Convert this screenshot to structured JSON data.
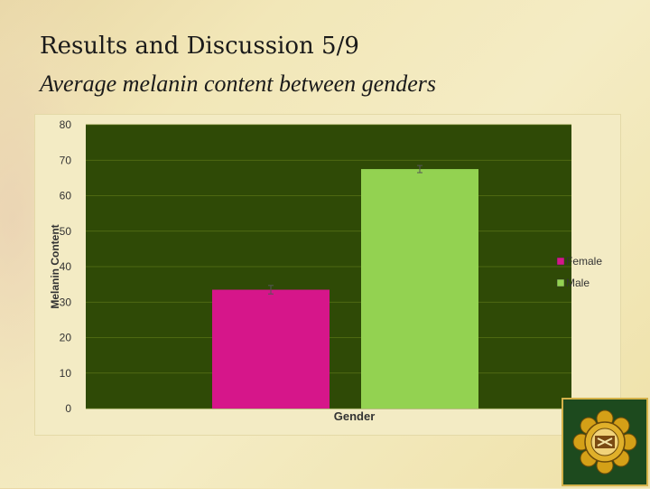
{
  "slide": {
    "title": "Results and Discussion 5/9",
    "subtitle": "Average melanin content between genders"
  },
  "logo": {
    "icon": "university-crest-emblem"
  },
  "colors": {
    "plot_bg": "#2f4a06",
    "female": "#d6168a",
    "male": "#93d251",
    "axis_text": "#333333"
  },
  "chart_data": {
    "type": "bar",
    "title": "",
    "xlabel": "Gender",
    "ylabel": "Melanin Content",
    "ylim": [
      0,
      80
    ],
    "yticks": [
      0,
      10,
      20,
      30,
      40,
      50,
      60,
      70,
      80
    ],
    "grid": true,
    "legend": "right",
    "series": [
      {
        "name": "Female",
        "value": 33.5,
        "error": 1.2,
        "color": "#d6168a"
      },
      {
        "name": "Male",
        "value": 67.5,
        "error": 1.0,
        "color": "#93d251"
      }
    ]
  }
}
